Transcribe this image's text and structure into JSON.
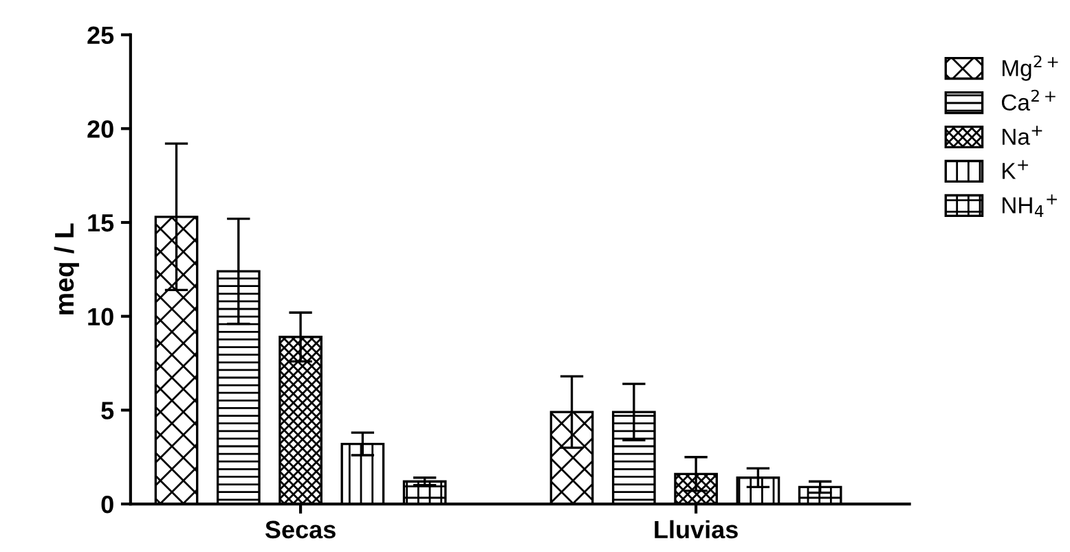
{
  "chart_data": {
    "type": "bar",
    "ylabel": "meq / L",
    "categories": [
      "Secas",
      "Lluvias"
    ],
    "series": [
      {
        "name": "Mg$^{2+}$",
        "color": "#000000",
        "values": [
          15.3,
          4.9
        ],
        "errors": [
          3.9,
          1.9
        ]
      },
      {
        "name": "Ca$^{2+}$",
        "color": "#000000",
        "values": [
          12.4,
          4.9
        ],
        "errors": [
          2.8,
          1.5
        ]
      },
      {
        "name": "Na$^{+}$",
        "color": "#000000",
        "values": [
          8.9,
          1.6
        ],
        "errors": [
          1.3,
          0.9
        ]
      },
      {
        "name": "K$^{+}$",
        "color": "#000000",
        "values": [
          3.2,
          1.4
        ],
        "errors": [
          0.6,
          0.5
        ]
      },
      {
        "name": "NH$_{4}$$^{+}$",
        "color": "#000000",
        "values": [
          1.2,
          0.9
        ],
        "errors": [
          0.2,
          0.3
        ]
      }
    ],
    "ylim": [
      0,
      25
    ],
    "yticks": [
      0,
      5,
      10,
      15,
      20,
      25
    ],
    "grid": false,
    "legend": "top right"
  }
}
